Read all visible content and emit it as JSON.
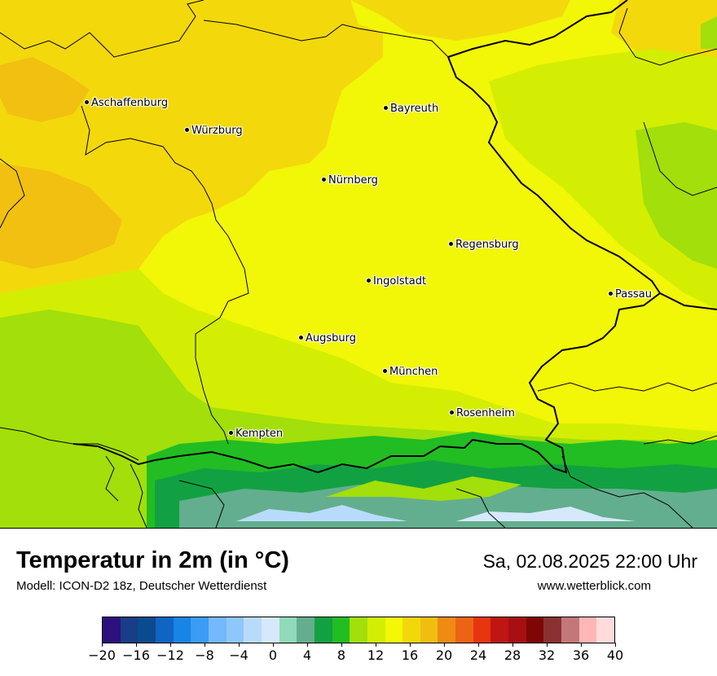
{
  "title": "Temperatur in 2m (in °C)",
  "model": "Modell: ICON-D2 18z, Deutscher Wetterdienst",
  "datetime": "Sa, 02.08.2025 22:00 Uhr",
  "website": "www.wetterblick.com",
  "cities": [
    {
      "name": "Aschaffenburg",
      "id": "aschaffenburg"
    },
    {
      "name": "Würzburg",
      "id": "wuerzburg"
    },
    {
      "name": "Bayreuth",
      "id": "bayreuth"
    },
    {
      "name": "Nürnberg",
      "id": "nuernberg"
    },
    {
      "name": "Regensburg",
      "id": "regensburg"
    },
    {
      "name": "Ingolstadt",
      "id": "ingolstadt"
    },
    {
      "name": "Passau",
      "id": "passau"
    },
    {
      "name": "Augsburg",
      "id": "augsburg"
    },
    {
      "name": "München",
      "id": "muenchen"
    },
    {
      "name": "Rosenheim",
      "id": "rosenheim"
    },
    {
      "name": "Kempten",
      "id": "kempten"
    }
  ],
  "legend": {
    "colors": [
      "#2e0f7e",
      "#173e86",
      "#0a4a8e",
      "#1064c2",
      "#1784e6",
      "#3a9cf5",
      "#74b9fb",
      "#8fc6fb",
      "#b9dbfb",
      "#d6e9fb",
      "#91d9bb",
      "#63ae8e",
      "#12a142",
      "#21bd22",
      "#a2df0b",
      "#d3ee03",
      "#f4f807",
      "#f2d80a",
      "#f1be10",
      "#ef8a13",
      "#ed6314",
      "#e7350f",
      "#bf1613",
      "#a80f12",
      "#7f0606",
      "#8b3131",
      "#c37778",
      "#feb7b4",
      "#ffdbdb"
    ],
    "ticks": [
      "−20",
      "−16",
      "−12",
      "−8",
      "−4",
      "0",
      "4",
      "8",
      "12",
      "16",
      "20",
      "24",
      "28",
      "32",
      "36",
      "40"
    ]
  }
}
